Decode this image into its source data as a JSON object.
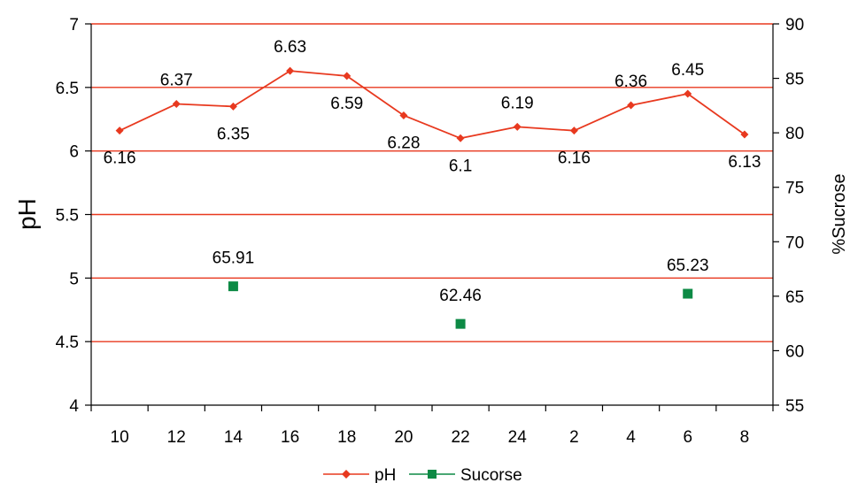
{
  "chart_data": {
    "type": "line",
    "categories": [
      "10",
      "12",
      "14",
      "16",
      "18",
      "20",
      "22",
      "24",
      "2",
      "4",
      "6",
      "8"
    ],
    "series": [
      {
        "name": "pH",
        "axis": "left",
        "style": "line-diamond",
        "color": "#e8391f",
        "values": [
          6.16,
          6.37,
          6.35,
          6.63,
          6.59,
          6.28,
          6.1,
          6.19,
          6.16,
          6.36,
          6.45,
          6.13
        ],
        "labels": [
          "6.16",
          "6.37",
          "6.35",
          "6.63",
          "6.59",
          "6.28",
          "6.1",
          "6.19",
          "6.16",
          "6.36",
          "6.45",
          "6.13"
        ]
      },
      {
        "name": "Sucorse",
        "axis": "right",
        "style": "square-marker",
        "color": "#0d8a45",
        "points": [
          {
            "category": "14",
            "value": 65.91,
            "label": "65.91"
          },
          {
            "category": "22",
            "value": 62.46,
            "label": "62.46"
          },
          {
            "category": "6",
            "value": 65.23,
            "label": "65.23"
          }
        ]
      }
    ],
    "y_left": {
      "label": "pH",
      "min": 4,
      "max": 7,
      "ticks": [
        "4",
        "4.5",
        "5",
        "5.5",
        "6",
        "6.5",
        "7"
      ]
    },
    "y_right": {
      "label": "%Sucrose",
      "min": 55,
      "max": 90,
      "ticks": [
        "55",
        "60",
        "65",
        "70",
        "75",
        "80",
        "85",
        "90"
      ]
    },
    "gridlines": "horizontal",
    "gridline_color": "#e8391f",
    "legend_position": "bottom"
  }
}
